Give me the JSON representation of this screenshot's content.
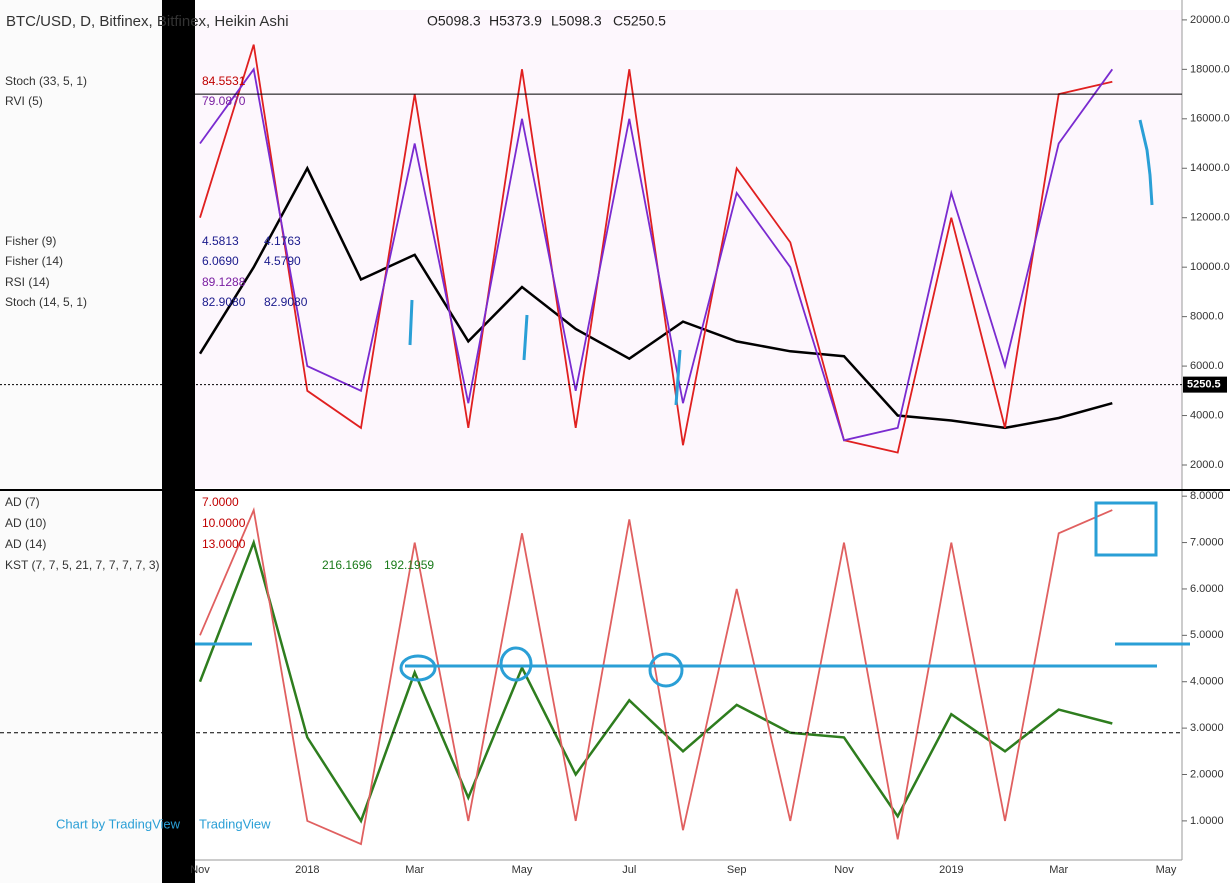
{
  "chart_data": [
    {
      "type": "line",
      "title": "BTC/USD, D, Bitfinex, Bitfinex, Heikin Ashi",
      "ohlc": [
        "O5098.3",
        "H5373.9",
        "L5098.3",
        "C5250.5"
      ],
      "legend": [
        {
          "name": "Stoch (33, 5, 1)",
          "values": [
            "84.5531"
          ],
          "color": "#c00000"
        },
        {
          "name": "RVI (5)",
          "values": [
            "79.0870"
          ],
          "color": "#7a1fa2"
        },
        {
          "name": "Fisher (9)",
          "values": [
            "4.5813",
            "4.1763"
          ],
          "color": "#1a1a8c"
        },
        {
          "name": "Fisher (14)",
          "values": [
            "6.0690",
            "4.5790"
          ],
          "color": "#1a1a8c"
        },
        {
          "name": "RSI (14)",
          "values": [
            "89.1288"
          ],
          "color": "#7a1fa2"
        },
        {
          "name": "Stoch (14, 5, 1)",
          "values": [
            "82.9080",
            "82.9080"
          ],
          "color": "#1a1a8c"
        }
      ],
      "series": [
        {
          "name": "Price",
          "color": "#000000",
          "values": [
            6500,
            10000,
            14000,
            9500,
            10500,
            7000,
            9200,
            7500,
            6300,
            7800,
            7000,
            6600,
            6400,
            4000,
            3800,
            3500,
            3900,
            4500,
            null
          ]
        },
        {
          "name": "Stoch",
          "color": "#e02020",
          "values": [
            12000,
            19000,
            5000,
            3500,
            17000,
            3500,
            18000,
            3500,
            18000,
            2800,
            14000,
            11000,
            3000,
            2500,
            12000,
            3500,
            17000,
            17500,
            null
          ]
        },
        {
          "name": "RVI",
          "color": "#7a2bd0",
          "values": [
            15000,
            18000,
            6000,
            5000,
            15000,
            4500,
            16000,
            5000,
            16000,
            4500,
            13000,
            10000,
            3000,
            3500,
            13000,
            6000,
            15000,
            18000,
            null
          ]
        }
      ],
      "last_price": {
        "value": 5250.5,
        "label": "5250.5"
      },
      "upper_level": 17000,
      "ylim": [
        1070,
        20400
      ],
      "yticks": [
        {
          "value": 2000,
          "label": "2000.0"
        },
        {
          "value": 4000,
          "label": "4000.0"
        },
        {
          "value": 6000,
          "label": "6000.0"
        },
        {
          "value": 8000,
          "label": "8000.0"
        },
        {
          "value": 10000,
          "label": "10000.0"
        },
        {
          "value": 12000,
          "label": "12000.0"
        },
        {
          "value": 14000,
          "label": "14000.0"
        },
        {
          "value": 16000,
          "label": "16000.0"
        },
        {
          "value": 18000,
          "label": "18000.0"
        },
        {
          "value": 20000,
          "label": "20000.0"
        }
      ]
    },
    {
      "type": "line",
      "legend": [
        {
          "name": "AD (7)",
          "values": [
            "7.0000"
          ],
          "color": "#c00000"
        },
        {
          "name": "AD (10)",
          "values": [
            "10.0000"
          ],
          "color": "#c00000"
        },
        {
          "name": "AD (14)",
          "values": [
            "13.0000"
          ],
          "color": "#c00000"
        },
        {
          "name": "KST (7, 7, 5, 21, 7, 7, 7, 7, 3)",
          "values": [
            "216.1696",
            "192.1959"
          ],
          "color": "#1a7a1a"
        }
      ],
      "categories": [
        "Nov",
        null,
        "2018",
        null,
        "Mar",
        null,
        "May",
        null,
        "Jul",
        null,
        "Sep",
        null,
        "Nov",
        null,
        "2019",
        null,
        "Mar",
        null,
        "May"
      ],
      "series": [
        {
          "name": "KST",
          "color": "#2e7d1e",
          "values": [
            4.0,
            7.0,
            2.8,
            1.0,
            4.2,
            1.5,
            4.3,
            2.0,
            3.6,
            2.5,
            3.5,
            2.9,
            2.8,
            1.1,
            3.3,
            2.5,
            3.4,
            3.1,
            null
          ]
        },
        {
          "name": "AD",
          "color": "#e06060",
          "values": [
            5.0,
            7.7,
            1.0,
            0.5,
            7.0,
            1.0,
            7.2,
            1.0,
            7.5,
            0.8,
            6.0,
            1.0,
            7.0,
            0.6,
            7.0,
            1.0,
            7.2,
            7.7,
            null
          ]
        }
      ],
      "dashed_level": 2.9,
      "ylim": [
        0.2,
        8.09
      ],
      "yticks": [
        {
          "value": 1,
          "label": "1.0000"
        },
        {
          "value": 2,
          "label": "2.0000"
        },
        {
          "value": 3,
          "label": "3.0000"
        },
        {
          "value": 4,
          "label": "4.0000"
        },
        {
          "value": 5,
          "label": "5.0000"
        },
        {
          "value": 6,
          "label": "6.0000"
        },
        {
          "value": 7,
          "label": "7.0000"
        },
        {
          "value": 8,
          "label": "8.0000"
        }
      ]
    }
  ],
  "footer": {
    "brand": "Chart by TradingView",
    "watermark": "TradingView"
  }
}
